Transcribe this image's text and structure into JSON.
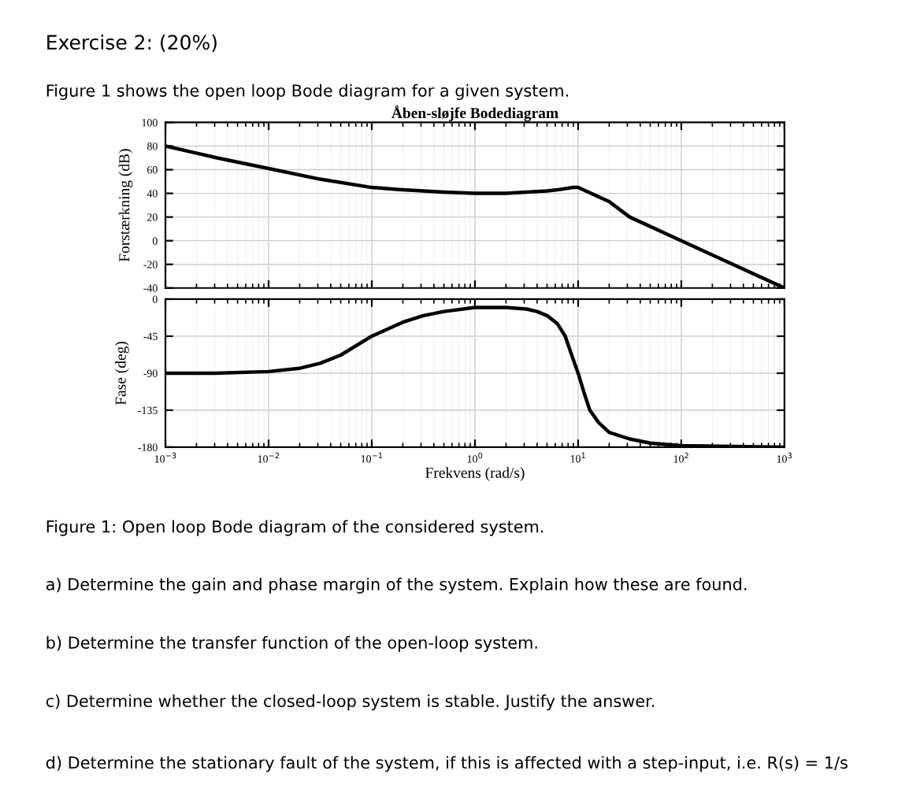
{
  "chart_data": [
    {
      "type": "line",
      "title": "Åben-sløjfe Bodediagram",
      "ylabel": "Forstærkning (dB)",
      "annotations": [
        "Exercise 2: (20%)",
        "Figure 1 shows the open loop Bode diagram for a given system."
      ],
      "x": [
        0.001,
        0.00316,
        0.01,
        0.0316,
        0.1,
        0.2,
        0.316,
        0.5,
        1,
        2,
        3.16,
        5,
        6.31,
        8.91,
        10,
        12.6,
        20,
        31.6,
        100,
        316,
        1000
      ],
      "series": [
        {
          "color": "#000000",
          "values": [
            80,
            70,
            61,
            52,
            45,
            43,
            42,
            41,
            40,
            40,
            41,
            42,
            43,
            45,
            45,
            41,
            33,
            20,
            0,
            -20,
            -40
          ]
        }
      ],
      "xlim": [
        0.001,
        1000
      ],
      "ylim": [
        -40,
        100
      ],
      "yticks": [
        -40,
        -20,
        0,
        20,
        40,
        60,
        80,
        100
      ],
      "xticks": [
        {
          "value": 0.001,
          "label": null
        },
        {
          "value": 0.01,
          "label": null
        },
        {
          "value": 0.1,
          "label": null
        },
        {
          "value": 1,
          "label": null
        },
        {
          "value": 10,
          "label": null
        },
        {
          "value": 100,
          "label": null
        },
        {
          "value": 1000,
          "label": null
        }
      ],
      "log": "x",
      "grid": true,
      "tick_labels": "y",
      "marker": "none",
      "line_style": "solid"
    },
    {
      "type": "line",
      "ylabel": "Fase (deg)",
      "xlabel": "Frekvens (rad/s)",
      "annotations": [
        "Figure 1: Open loop Bode diagram of the considered system.",
        "a) Determine the gain and phase margin of the system. Explain how these are found.",
        "b) Determine the transfer function of the open-loop system.",
        "c) Determine whether the closed-loop system is stable. Justify the answer.",
        "d) Determine the stationary fault of the system, if this is affected with a step-input, i.e. R(s) = 1/s"
      ],
      "x": [
        0.001,
        0.003,
        0.01,
        0.02,
        0.0316,
        0.05,
        0.1,
        0.2,
        0.316,
        0.5,
        1,
        2,
        3.16,
        4,
        5,
        6.31,
        7.5,
        8.5,
        10,
        11.5,
        13,
        15.8,
        20,
        31.6,
        50,
        100,
        1000
      ],
      "series": [
        {
          "color": "#000000",
          "values": [
            -90,
            -90,
            -88,
            -84,
            -78,
            -68,
            -45,
            -28,
            -20,
            -15,
            -10,
            -10,
            -12,
            -15,
            -20,
            -30,
            -45,
            -65,
            -90,
            -115,
            -135,
            -150,
            -162,
            -170,
            -175,
            -178,
            -180
          ]
        }
      ],
      "xlim": [
        0.001,
        1000
      ],
      "ylim": [
        -180,
        0
      ],
      "yticks": [
        -180,
        -135,
        -90,
        -45,
        0
      ],
      "xticks": [
        {
          "value": 0.001,
          "label": "10$^{−3}$"
        },
        {
          "value": 0.01,
          "label": "10$^{−2}$"
        },
        {
          "value": 0.1,
          "label": "10$^{−1}$"
        },
        {
          "value": 1,
          "label": "10$^{0}$"
        },
        {
          "value": 10,
          "label": "10$^{1}$"
        },
        {
          "value": 100,
          "label": "10$^{2}$"
        },
        {
          "value": 1000,
          "label": "10$^{3}$"
        }
      ],
      "log": "x",
      "grid": true,
      "marker": "none",
      "line_style": "solid"
    }
  ]
}
